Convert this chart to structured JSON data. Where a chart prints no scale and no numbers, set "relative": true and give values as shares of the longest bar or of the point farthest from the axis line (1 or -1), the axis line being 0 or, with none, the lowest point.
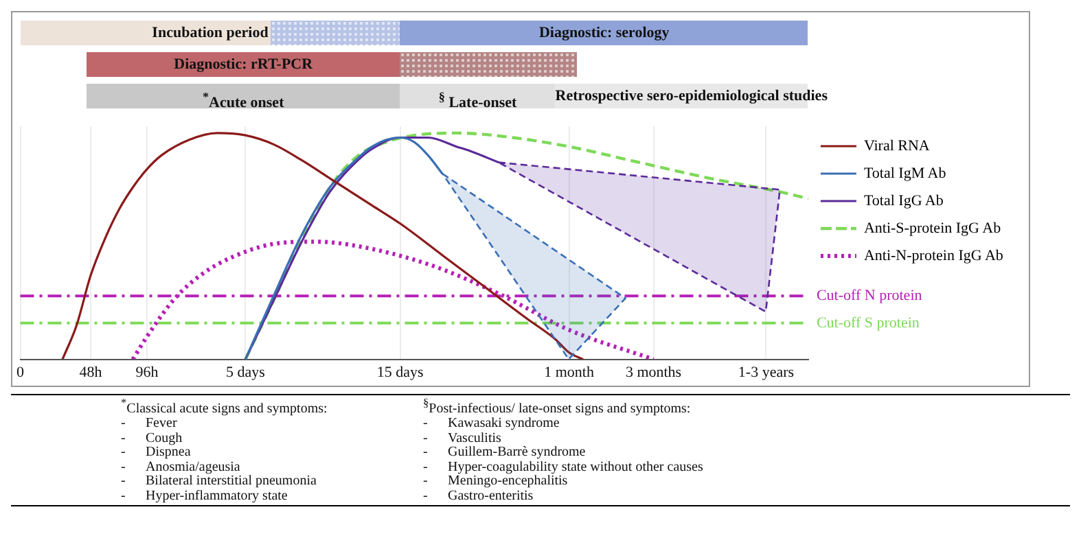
{
  "chart_data": {
    "type": "line",
    "relative": true,
    "marker": "none",
    "legend": "right",
    "grid": "x",
    "categories": [
      "0",
      null,
      null,
      null,
      null,
      "48h",
      null,
      null,
      null,
      "96h",
      null,
      null,
      null,
      null,
      null,
      null,
      "5 days",
      null,
      null,
      null,
      null,
      null,
      null,
      null,
      null,
      null,
      null,
      "15 days",
      null,
      null,
      null,
      null,
      null,
      null,
      null,
      null,
      null,
      null,
      null,
      "1 month",
      null,
      null,
      null,
      null,
      null,
      "3 months",
      null,
      null,
      null,
      null,
      null,
      null,
      null,
      "1-3 years",
      null,
      null,
      null
    ],
    "series": [
      {
        "name": "Viral RNA",
        "color": "#8b1a1a",
        "line_style": "solid",
        "values": [
          null,
          null,
          null,
          0,
          0.15,
          0.37,
          0.53,
          0.66,
          0.76,
          0.84,
          0.9,
          null,
          0.97,
          null,
          1,
          null,
          0.99,
          null,
          0.95,
          null,
          0.88,
          null,
          0.8,
          null,
          null,
          0.68,
          null,
          0.6,
          null,
          null,
          0.46,
          null,
          null,
          0.32,
          null,
          null,
          0.18,
          null,
          0.09,
          0.03,
          0,
          null,
          null,
          null,
          null,
          null,
          null,
          null,
          null,
          null,
          null,
          null,
          null,
          null,
          null,
          null,
          null
        ]
      },
      {
        "name": "Total IgM Ab",
        "color": "#3a6fb5",
        "line_style": "solid",
        "values": [
          null,
          null,
          null,
          null,
          null,
          null,
          null,
          null,
          null,
          null,
          null,
          null,
          null,
          null,
          null,
          null,
          0,
          null,
          0.28,
          null,
          0.55,
          null,
          0.76,
          null,
          0.89,
          0.94,
          0.97,
          0.98,
          0.96,
          0.9,
          0.82,
          null,
          null,
          null,
          null,
          null,
          null,
          null,
          null,
          null,
          null,
          null,
          null,
          null,
          null,
          null,
          null,
          null,
          null,
          null,
          null,
          null,
          null,
          null,
          null,
          null,
          null
        ]
      },
      {
        "name": "Total IgG Ab",
        "color": "#5b2a9a",
        "line_style": "solid",
        "values": [
          null,
          null,
          null,
          null,
          null,
          null,
          null,
          null,
          null,
          null,
          null,
          null,
          null,
          null,
          null,
          null,
          0,
          null,
          0.26,
          null,
          0.52,
          null,
          0.74,
          null,
          0.88,
          0.93,
          null,
          0.98,
          null,
          0.98,
          null,
          0.94,
          0.92,
          null,
          0.87,
          null,
          null,
          null,
          null,
          null,
          null,
          null,
          null,
          null,
          null,
          null,
          null,
          null,
          null,
          null,
          null,
          null,
          null,
          null,
          null,
          null,
          null
        ]
      },
      {
        "name": "Anti-S-protein IgG Ab",
        "color": "#7ed957",
        "line_style": "dashed",
        "values": [
          null,
          null,
          null,
          null,
          null,
          null,
          null,
          null,
          null,
          null,
          null,
          null,
          null,
          null,
          null,
          null,
          0,
          null,
          0.26,
          null,
          0.53,
          null,
          0.76,
          null,
          0.9,
          null,
          0.96,
          null,
          0.99,
          null,
          null,
          1,
          null,
          null,
          null,
          0.98,
          null,
          null,
          null,
          0.94,
          null,
          null,
          null,
          null,
          0.87,
          null,
          null,
          null,
          null,
          0.8,
          null,
          null,
          null,
          null,
          0.74,
          null,
          0.71
        ]
      },
      {
        "name": "Anti-N-protein IgG Ab",
        "color": "#b620b6",
        "line_style": "dotted",
        "values": [
          null,
          null,
          null,
          null,
          null,
          null,
          null,
          null,
          0,
          0.1,
          null,
          0.27,
          null,
          0.38,
          null,
          0.45,
          null,
          null,
          0.51,
          null,
          null,
          0.52,
          null,
          null,
          0.5,
          null,
          null,
          null,
          null,
          0.42,
          null,
          null,
          null,
          null,
          0.29,
          null,
          null,
          null,
          null,
          0.13,
          null,
          null,
          null,
          null,
          null,
          0,
          null,
          null,
          null,
          null,
          null,
          null,
          null,
          null,
          null,
          null,
          null
        ]
      }
    ],
    "ref_lines": [
      {
        "axis": "y",
        "value": 0.28,
        "label": "Cut-off N protein",
        "color": "#b620b6",
        "line_style": "dashed"
      },
      {
        "axis": "y",
        "value": 0.16,
        "label": "Cut-off S protein",
        "color": "#7ed957",
        "line_style": "dashed"
      }
    ],
    "annotations": [
      "Incubation period",
      "Diagnostic: serology",
      "Diagnostic: rRT-PCR",
      "$^{*}$Acute onset",
      "$^{§}$ Late-onset",
      "Retrospective sero-epidemiological studies",
      "$^{*}$Classical acute signs and symptoms:\n-\tFever\n-\tCough\n-\tDispnea\n-\tAnosmia/ageusia\n-\tBilateral interstitial pneumonia\n-\tHyper-inflammatory state",
      "$^{§}$Post-infectious/ late-onset signs and symptoms:\n-\tKawasaki syndrome\n-\tVasculitis\n-\tGuillem-Barrè syndrome\n-\tHyper-coagulability state without other causes\n-\tMeningo-encephalitis\n-\tGastro-enteritis"
    ]
  }
}
